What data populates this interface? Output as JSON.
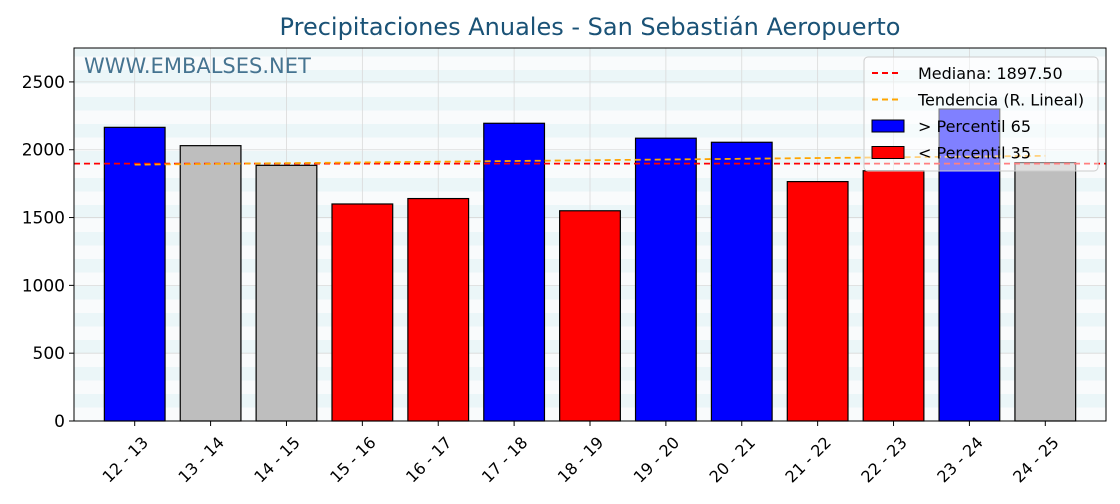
{
  "chart_data": {
    "type": "bar",
    "title": "Precipitaciones Anuales - San Sebastián Aeropuerto",
    "watermark": "WWW.EMBALSES.NET",
    "xlabel": "",
    "ylabel": "",
    "ylim": [
      0,
      2750
    ],
    "yticks": [
      0,
      500,
      1000,
      1500,
      2000,
      2500
    ],
    "grid": true,
    "legend_position": "top-right",
    "categories": [
      "12 - 13",
      "13 - 14",
      "14 - 15",
      "15 - 16",
      "16 - 17",
      "17 - 18",
      "18 - 19",
      "19 - 20",
      "20 - 21",
      "21 - 22",
      "22 - 23",
      "23 - 24",
      "24 - 25"
    ],
    "values": [
      2165,
      2030,
      1885,
      1600,
      1640,
      2195,
      1550,
      2085,
      2055,
      1765,
      1845,
      2300,
      1905
    ],
    "bar_classes": [
      "high",
      "mid",
      "mid",
      "low",
      "low",
      "high",
      "low",
      "high",
      "high",
      "low",
      "low",
      "high",
      "mid"
    ],
    "median": 1897.5,
    "trend": {
      "start": 1890,
      "end": 1955
    },
    "legend": {
      "median_label": "Mediana: 1897.50",
      "trend_label": "Tendencia (R. Lineal)",
      "high_label": " > Percentil 65",
      "low_label": " < Percentil 35"
    },
    "colors": {
      "high": "#0000ff",
      "mid": "#bebebe",
      "low": "#ff0000",
      "median": "#ff0000",
      "trend": "#ffa500",
      "title": "#1a5276",
      "watermark": "#1a5276"
    }
  }
}
